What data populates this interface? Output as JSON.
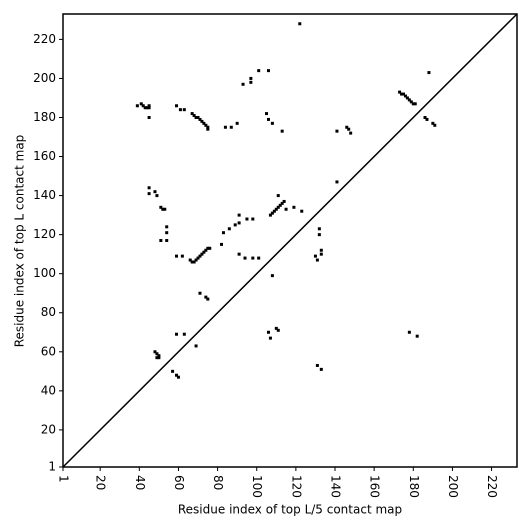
{
  "chart_data": {
    "type": "scatter",
    "x_label": "Residue index of top L/5 contact map",
    "y_label": "Residue index of top L contact map",
    "xlim": [
      1,
      233
    ],
    "ylim": [
      1,
      233
    ],
    "xticks": [
      1,
      20,
      40,
      60,
      80,
      100,
      120,
      140,
      160,
      180,
      200,
      220
    ],
    "yticks": [
      1,
      20,
      40,
      60,
      80,
      100,
      120,
      140,
      160,
      180,
      200,
      220
    ],
    "color": "#000000",
    "x": [
      122,
      106,
      101,
      97,
      97,
      93,
      188,
      39,
      41,
      42,
      43,
      44,
      45,
      45,
      45,
      59,
      61,
      63,
      67,
      68,
      69,
      70,
      71,
      72,
      73,
      74,
      75,
      75,
      84,
      87,
      90,
      105,
      106,
      108,
      113,
      141,
      146,
      147,
      148,
      173,
      174,
      175,
      176,
      177,
      178,
      179,
      180,
      181,
      186,
      187,
      190,
      191,
      141,
      45,
      45,
      48,
      49,
      51,
      52,
      53,
      51,
      54,
      54,
      54,
      59,
      62,
      66,
      67,
      68,
      69,
      70,
      71,
      72,
      73,
      74,
      75,
      76,
      82,
      83,
      86,
      89,
      91,
      91,
      95,
      98,
      91,
      94,
      98,
      101,
      107,
      108,
      109,
      110,
      111,
      112,
      113,
      114,
      111,
      115,
      119,
      123,
      108,
      130,
      131,
      133,
      132,
      132,
      133,
      71,
      74,
      75,
      59,
      63,
      69,
      48,
      49,
      50,
      50,
      49,
      57,
      59,
      60,
      106,
      107,
      110,
      111,
      131,
      133,
      178,
      182
    ],
    "y": [
      228,
      204,
      204,
      200,
      198,
      197,
      203,
      186,
      187,
      186,
      185,
      185,
      185,
      186,
      180,
      186,
      184,
      184,
      182,
      181,
      180,
      180,
      179,
      178,
      177,
      176,
      175,
      174,
      175,
      175,
      177,
      182,
      179,
      177,
      173,
      173,
      175,
      174,
      172,
      193,
      192,
      192,
      191,
      190,
      189,
      188,
      187,
      187,
      180,
      179,
      177,
      176,
      147,
      144,
      141,
      142,
      140,
      134,
      133,
      133,
      117,
      117,
      124,
      121,
      109,
      109,
      107,
      106,
      106,
      107,
      108,
      109,
      110,
      111,
      112,
      113,
      113,
      115,
      121,
      123,
      125,
      130,
      126,
      128,
      128,
      110,
      108,
      108,
      108,
      130,
      131,
      132,
      133,
      134,
      135,
      136,
      137,
      140,
      133,
      134,
      132,
      99,
      109,
      107,
      110,
      120,
      123,
      112,
      90,
      88,
      87,
      69,
      69,
      63,
      60,
      59,
      58,
      57,
      57,
      50,
      48,
      47,
      70,
      67,
      72,
      71,
      53,
      51,
      70,
      68
    ]
  }
}
